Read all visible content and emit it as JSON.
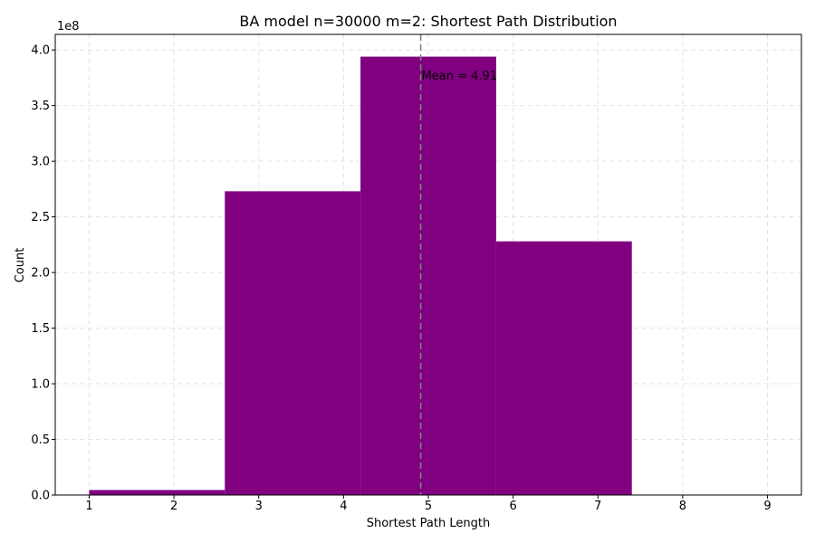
{
  "chart_data": {
    "type": "bar",
    "title": "BA model n=30000 m=2: Shortest Path Distribution",
    "xlabel": "Shortest Path Length",
    "ylabel": "Count",
    "y_scale_label": "1e8",
    "bar_color": "#800080",
    "mean_line_color": "#808080",
    "xlim": [
      0.6,
      9.4
    ],
    "ylim": [
      0,
      4.14
    ],
    "x_ticks": [
      1,
      2,
      3,
      4,
      5,
      6,
      7,
      8,
      9
    ],
    "x_tick_labels": [
      "1",
      "2",
      "3",
      "4",
      "5",
      "6",
      "7",
      "8",
      "9"
    ],
    "y_ticks": [
      0,
      0.5,
      1.0,
      1.5,
      2.0,
      2.5,
      3.0,
      3.5,
      4.0
    ],
    "y_tick_labels": [
      "0.0",
      "0.5",
      "1.0",
      "1.5",
      "2.0",
      "2.5",
      "3.0",
      "3.5",
      "4.0"
    ],
    "bins": [
      {
        "x0": 1.0,
        "x1": 2.6,
        "value": 0.045
      },
      {
        "x0": 2.6,
        "x1": 4.2,
        "value": 2.73
      },
      {
        "x0": 4.2,
        "x1": 5.8,
        "value": 3.94
      },
      {
        "x0": 5.8,
        "x1": 7.4,
        "value": 2.28
      },
      {
        "x0": 7.4,
        "x1": 9.0,
        "value": 0.003
      }
    ],
    "mean": 4.91,
    "mean_label": "Mean = 4.91",
    "grid": true
  }
}
